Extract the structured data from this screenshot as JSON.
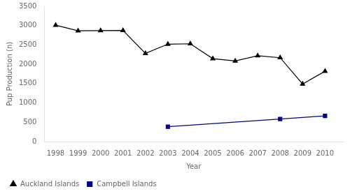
{
  "chart_data": {
    "type": "line",
    "xlabel": "Year",
    "ylabel": "Pup Production (n)",
    "xlim": [
      1997.5,
      2010.8
    ],
    "ylim": [
      0,
      3500
    ],
    "xticks": [
      1998,
      1999,
      2000,
      2001,
      2002,
      2003,
      2004,
      2005,
      2006,
      2007,
      2008,
      2009,
      2010
    ],
    "yticks": [
      0,
      500,
      1000,
      1500,
      2000,
      2500,
      3000,
      3500
    ],
    "grid": false,
    "legend": "lower left",
    "series": [
      {
        "name": "Auckland Islands",
        "color": "#000000",
        "marker": "triangle",
        "line_style": "solid",
        "x": [
          1998,
          1999,
          2000,
          2001,
          2002,
          2003,
          2004,
          2005,
          2006,
          2007,
          2008,
          2009,
          2010
        ],
        "values": [
          3010,
          2865,
          2870,
          2875,
          2280,
          2520,
          2530,
          2145,
          2085,
          2220,
          2170,
          1490,
          1820
        ]
      },
      {
        "name": "Campbell Islands",
        "color": "#00008B",
        "marker": "square",
        "line_style": "solid",
        "x": [
          2003,
          2008,
          2010
        ],
        "values": [
          385,
          585,
          665
        ]
      }
    ]
  }
}
